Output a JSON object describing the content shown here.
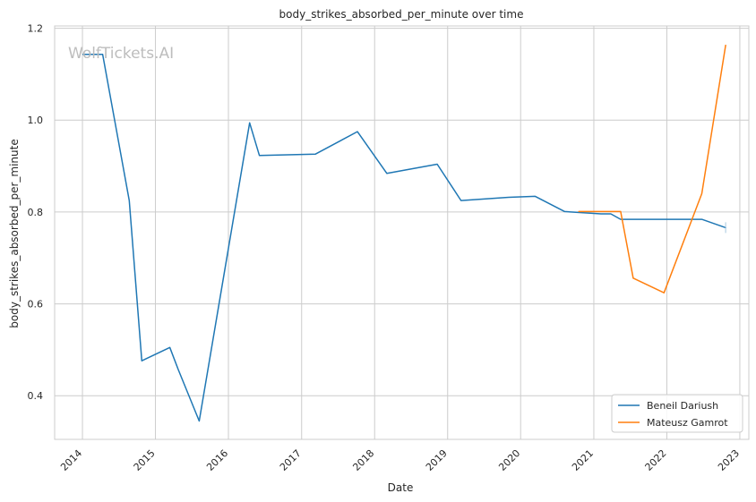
{
  "watermark": "WolfTickets.AI",
  "chart_data": {
    "type": "line",
    "title": "body_strikes_absorbed_per_minute over time",
    "xlabel": "Date",
    "ylabel": "body_strikes_absorbed_per_minute",
    "x_type": "date",
    "xlim": [
      "2013-08-15",
      "2023-02-15"
    ],
    "ylim": [
      0.305,
      1.205
    ],
    "x_ticks": [
      "2014-01-01",
      "2015-01-01",
      "2016-01-01",
      "2017-01-01",
      "2018-01-01",
      "2019-01-01",
      "2020-01-01",
      "2021-01-01",
      "2022-01-01",
      "2023-01-01"
    ],
    "x_tick_labels": [
      "2014",
      "2015",
      "2016",
      "2017",
      "2018",
      "2019",
      "2020",
      "2021",
      "2022",
      "2023"
    ],
    "y_ticks": [
      0.4,
      0.6,
      0.8,
      1.0,
      1.2
    ],
    "y_tick_labels": [
      "0.4",
      "0.6",
      "0.8",
      "1.0",
      "1.2"
    ],
    "grid": true,
    "legend_position": "lower-right",
    "series": [
      {
        "name": "Beneil Dariush",
        "color": "#1f77b4",
        "points": [
          [
            "2014-01-04",
            1.143
          ],
          [
            "2014-04-12",
            1.143
          ],
          [
            "2014-08-23",
            0.825
          ],
          [
            "2014-10-25",
            0.476
          ],
          [
            "2015-03-14",
            0.505
          ],
          [
            "2015-04-25",
            0.457
          ],
          [
            "2015-08-08",
            0.345
          ],
          [
            "2016-04-16",
            0.994
          ],
          [
            "2016-06-04",
            0.923
          ],
          [
            "2017-03-11",
            0.926
          ],
          [
            "2017-10-07",
            0.975
          ],
          [
            "2018-03-03",
            0.884
          ],
          [
            "2018-11-10",
            0.904
          ],
          [
            "2019-03-09",
            0.825
          ],
          [
            "2019-11-02",
            0.832
          ],
          [
            "2020-03-14",
            0.834
          ],
          [
            "2020-08-08",
            0.801
          ],
          [
            "2021-02-06",
            0.796
          ],
          [
            "2021-03-27",
            0.796
          ],
          [
            "2021-05-15",
            0.784
          ],
          [
            "2022-06-25",
            0.784
          ],
          [
            "2022-10-22",
            0.766
          ]
        ]
      },
      {
        "name": "Mateusz Gamrot",
        "color": "#ff7f0e",
        "points": [
          [
            "2020-10-18",
            0.801
          ],
          [
            "2021-04-24",
            0.801
          ],
          [
            "2021-05-15",
            0.801
          ],
          [
            "2021-07-17",
            0.656
          ],
          [
            "2021-12-18",
            0.624
          ],
          [
            "2022-06-25",
            0.84
          ],
          [
            "2022-10-22",
            1.163
          ]
        ]
      }
    ]
  }
}
